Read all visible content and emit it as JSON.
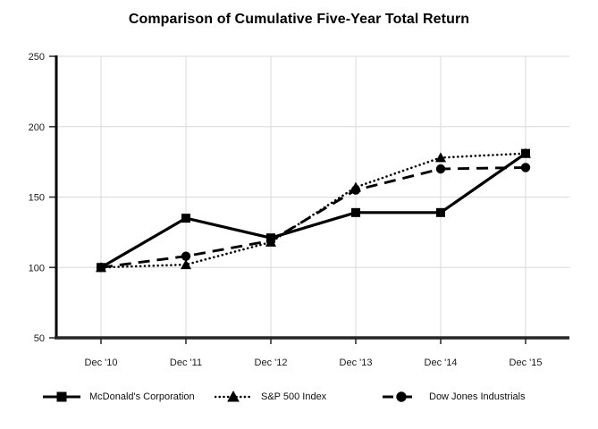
{
  "chart_data": {
    "type": "line",
    "title": "Comparison of Cumulative Five-Year Total Return",
    "categories": [
      "Dec '10",
      "Dec '11",
      "Dec '12",
      "Dec '13",
      "Dec '14",
      "Dec '15"
    ],
    "series": [
      {
        "name": "McDonald's Corporation",
        "marker": "square",
        "line_style": "solid",
        "values": [
          100,
          135,
          121,
          139,
          139,
          181
        ]
      },
      {
        "name": "S&P 500 Index",
        "marker": "triangle",
        "line_style": "dotted",
        "values": [
          100,
          102,
          118,
          157,
          178,
          181
        ]
      },
      {
        "name": "Dow Jones Industrials",
        "marker": "circle",
        "line_style": "dashed",
        "values": [
          100,
          108,
          119,
          155,
          170,
          171
        ]
      }
    ],
    "ylim": [
      50,
      250
    ],
    "yticks": [
      50,
      100,
      150,
      200,
      250
    ],
    "grid": true,
    "legend_position": "bottom",
    "colors": {
      "series": "#000000",
      "grid": "#d9d9d9",
      "y_axis": "#000000",
      "x_axis": "#262626",
      "tick": "#333333",
      "tick_label": "#1a1a1a"
    }
  }
}
